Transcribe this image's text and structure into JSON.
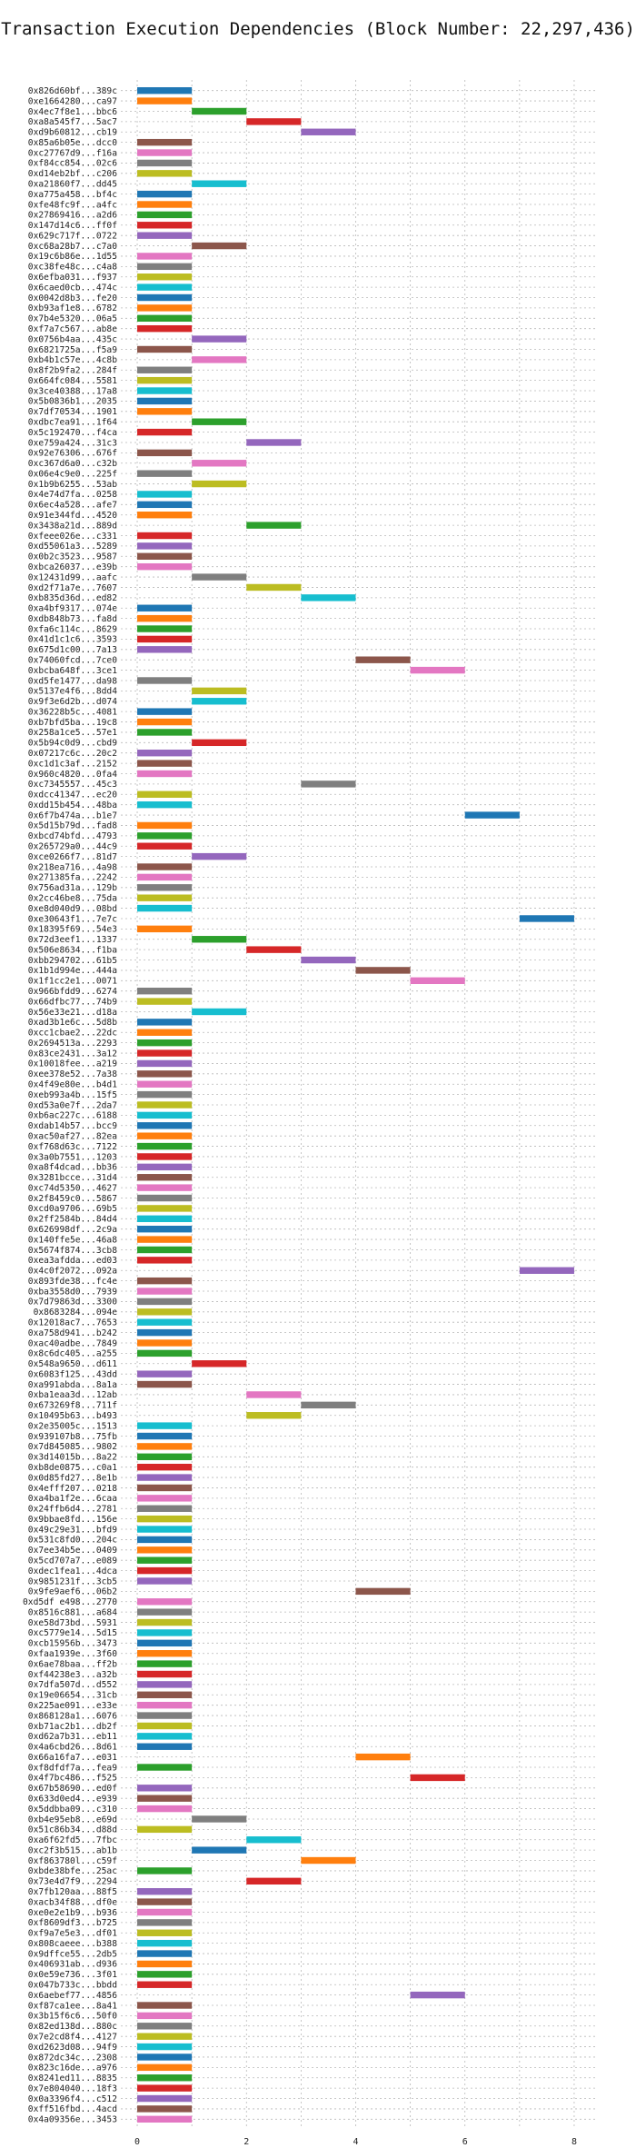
{
  "chart_data": {
    "type": "bar",
    "orientation": "horizontal",
    "style": "gantt",
    "title": "Transaction Execution Dependencies (Block Number: 22,297,436)",
    "xlabel": "",
    "ylabel": "",
    "xlim": [
      -0.3,
      8.4
    ],
    "xticks": [
      0,
      2,
      4,
      6,
      8
    ],
    "grid": true,
    "legend": "none",
    "palette": [
      "#1f77b4",
      "#ff7f0e",
      "#2ca02c",
      "#d62728",
      "#9467bd",
      "#8c564b",
      "#e377c2",
      "#7f7f7f",
      "#bcbd22",
      "#17becf"
    ],
    "transactions": [
      {
        "label": "0x826d60bf...389c",
        "start": 0,
        "end": 1
      },
      {
        "label": "0xe1664280...ca97",
        "start": 0,
        "end": 1
      },
      {
        "label": "0x4ec7f8e1...bbc6",
        "start": 1,
        "end": 2
      },
      {
        "label": "0xa8a545f7...5ac7",
        "start": 2,
        "end": 3
      },
      {
        "label": "0xd9b60812...cb19",
        "start": 3,
        "end": 4
      },
      {
        "label": "0x85a6b05e...dcc0",
        "start": 0,
        "end": 1
      },
      {
        "label": "0xc27767d9...f16a",
        "start": 0,
        "end": 1
      },
      {
        "label": "0xf84cc854...02c6",
        "start": 0,
        "end": 1
      },
      {
        "label": "0xd14eb2bf...c206",
        "start": 0,
        "end": 1
      },
      {
        "label": "0xa21860f7...dd45",
        "start": 1,
        "end": 2
      },
      {
        "label": "0xa775a458...bf4c",
        "start": 0,
        "end": 1
      },
      {
        "label": "0xfe48fc9f...a4fc",
        "start": 0,
        "end": 1
      },
      {
        "label": "0x27869416...a2d6",
        "start": 0,
        "end": 1
      },
      {
        "label": "0x147d14c6...ff0f",
        "start": 0,
        "end": 1
      },
      {
        "label": "0x629c717f...0722",
        "start": 0,
        "end": 1
      },
      {
        "label": "0xc68a28b7...c7a0",
        "start": 1,
        "end": 2
      },
      {
        "label": "0x19c6b86e...1d55",
        "start": 0,
        "end": 1
      },
      {
        "label": "0xc38fe48c...c4a8",
        "start": 0,
        "end": 1
      },
      {
        "label": "0x6efba031...f937",
        "start": 0,
        "end": 1
      },
      {
        "label": "0x6caed0cb...474c",
        "start": 0,
        "end": 1
      },
      {
        "label": "0x0042d8b3...fe20",
        "start": 0,
        "end": 1
      },
      {
        "label": "0xb93af1e8...6782",
        "start": 0,
        "end": 1
      },
      {
        "label": "0x7b4e5320...06a5",
        "start": 0,
        "end": 1
      },
      {
        "label": "0xf7a7c567...ab8e",
        "start": 0,
        "end": 1
      },
      {
        "label": "0x0756b4aa...435c",
        "start": 1,
        "end": 2
      },
      {
        "label": "0x6821725a...f5a9",
        "start": 0,
        "end": 1
      },
      {
        "label": "0xb4b1c57e...4c8b",
        "start": 1,
        "end": 2
      },
      {
        "label": "0x8f2b9fa2...284f",
        "start": 0,
        "end": 1
      },
      {
        "label": "0x664fc084...5581",
        "start": 0,
        "end": 1
      },
      {
        "label": "0x3ce40388...17a8",
        "start": 0,
        "end": 1
      },
      {
        "label": "0x5b0836b1...2035",
        "start": 0,
        "end": 1
      },
      {
        "label": "0x7df70534...1901",
        "start": 0,
        "end": 1
      },
      {
        "label": "0xdbc7ea91...1f64",
        "start": 1,
        "end": 2
      },
      {
        "label": "0x5c192470...f4ca",
        "start": 0,
        "end": 1
      },
      {
        "label": "0xe759a424...31c3",
        "start": 2,
        "end": 3
      },
      {
        "label": "0x92e76306...676f",
        "start": 0,
        "end": 1
      },
      {
        "label": "0xc367d6a0...c32b",
        "start": 1,
        "end": 2
      },
      {
        "label": "0x06e4c9e0...225f",
        "start": 0,
        "end": 1
      },
      {
        "label": "0x1b9b6255...53ab",
        "start": 1,
        "end": 2
      },
      {
        "label": "0x4e74d7fa...0258",
        "start": 0,
        "end": 1
      },
      {
        "label": "0x6ec4a528...afe7",
        "start": 0,
        "end": 1
      },
      {
        "label": "0x91e344fd...4520",
        "start": 0,
        "end": 1
      },
      {
        "label": "0x3438a21d...889d",
        "start": 2,
        "end": 3
      },
      {
        "label": "0xfeee026e...c331",
        "start": 0,
        "end": 1
      },
      {
        "label": "0xd55061a3...5289",
        "start": 0,
        "end": 1
      },
      {
        "label": "0x0b2c3523...9587",
        "start": 0,
        "end": 1
      },
      {
        "label": "0xbca26037...e39b",
        "start": 0,
        "end": 1
      },
      {
        "label": "0x12431d99...aafc",
        "start": 1,
        "end": 2
      },
      {
        "label": "0xd2f71a7e...7607",
        "start": 2,
        "end": 3
      },
      {
        "label": "0xb835d36d...ed82",
        "start": 3,
        "end": 4
      },
      {
        "label": "0xa4bf9317...074e",
        "start": 0,
        "end": 1
      },
      {
        "label": "0xdb848b73...fa8d",
        "start": 0,
        "end": 1
      },
      {
        "label": "0xfa6c114c...8629",
        "start": 0,
        "end": 1
      },
      {
        "label": "0x41d1c1c6...3593",
        "start": 0,
        "end": 1
      },
      {
        "label": "0x675d1c00...7a13",
        "start": 0,
        "end": 1
      },
      {
        "label": "0x74060fcd...7ce0",
        "start": 4,
        "end": 5
      },
      {
        "label": "0xbcba648f...3ce1",
        "start": 5,
        "end": 6
      },
      {
        "label": "0xd5fe1477...da98",
        "start": 0,
        "end": 1
      },
      {
        "label": "0x5137e4f6...8dd4",
        "start": 1,
        "end": 2
      },
      {
        "label": "0x9f3e6d2b...d074",
        "start": 1,
        "end": 2
      },
      {
        "label": "0x36228b5c...4081",
        "start": 0,
        "end": 1
      },
      {
        "label": "0xb7bfd5ba...19c8",
        "start": 0,
        "end": 1
      },
      {
        "label": "0x258a1ce5...57e1",
        "start": 0,
        "end": 1
      },
      {
        "label": "0x5b94c0d9...cbd9",
        "start": 1,
        "end": 2
      },
      {
        "label": "0x07217c6c...20c2",
        "start": 0,
        "end": 1
      },
      {
        "label": "0xc1d1c3af...2152",
        "start": 0,
        "end": 1
      },
      {
        "label": "0x960c4820...0fa4",
        "start": 0,
        "end": 1
      },
      {
        "label": "0xc7345557...45c3",
        "start": 3,
        "end": 4
      },
      {
        "label": "0xdcc41347...ec20",
        "start": 0,
        "end": 1
      },
      {
        "label": "0xdd15b454...48ba",
        "start": 0,
        "end": 1
      },
      {
        "label": "0x6f7b474a...b1e7",
        "start": 6,
        "end": 7
      },
      {
        "label": "0x5d15b79d...fad8",
        "start": 0,
        "end": 1
      },
      {
        "label": "0xbcd74bfd...4793",
        "start": 0,
        "end": 1
      },
      {
        "label": "0x265729a0...44c9",
        "start": 0,
        "end": 1
      },
      {
        "label": "0xce0266f7...81d7",
        "start": 1,
        "end": 2
      },
      {
        "label": "0x218ea716...4a98",
        "start": 0,
        "end": 1
      },
      {
        "label": "0x271385fa...2242",
        "start": 0,
        "end": 1
      },
      {
        "label": "0x756ad31a...129b",
        "start": 0,
        "end": 1
      },
      {
        "label": "0x2cc46be8...75da",
        "start": 0,
        "end": 1
      },
      {
        "label": "0xe8d040d9...08bd",
        "start": 0,
        "end": 1
      },
      {
        "label": "0xe30643f1...7e7c",
        "start": 7,
        "end": 8
      },
      {
        "label": "0x18395f69...54e3",
        "start": 0,
        "end": 1
      },
      {
        "label": "0x72d3eef1...1337",
        "start": 1,
        "end": 2
      },
      {
        "label": "0x506e8634...f1ba",
        "start": 2,
        "end": 3
      },
      {
        "label": "0xbb294702...61b5",
        "start": 3,
        "end": 4
      },
      {
        "label": "0x1b1d994e...444a",
        "start": 4,
        "end": 5
      },
      {
        "label": "0x1f1cc2e1...0071",
        "start": 5,
        "end": 6
      },
      {
        "label": "0x966bfdd9...6274",
        "start": 0,
        "end": 1
      },
      {
        "label": "0x66dfbc77...74b9",
        "start": 0,
        "end": 1
      },
      {
        "label": "0x56e33e21...d18a",
        "start": 1,
        "end": 2
      },
      {
        "label": "0xad3b1e6c...5d8b",
        "start": 0,
        "end": 1
      },
      {
        "label": "0xcc1cbae2...22dc",
        "start": 0,
        "end": 1
      },
      {
        "label": "0x2694513a...2293",
        "start": 0,
        "end": 1
      },
      {
        "label": "0x83ce2431...3a12",
        "start": 0,
        "end": 1
      },
      {
        "label": "0x10018fee...a219",
        "start": 0,
        "end": 1
      },
      {
        "label": "0xee378e52...7a38",
        "start": 0,
        "end": 1
      },
      {
        "label": "0x4f49e80e...b4d1",
        "start": 0,
        "end": 1
      },
      {
        "label": "0xeb993a4b...15f5",
        "start": 0,
        "end": 1
      },
      {
        "label": "0xd53a0e7f...2da7",
        "start": 0,
        "end": 1
      },
      {
        "label": "0xb6ac227c...6188",
        "start": 0,
        "end": 1
      },
      {
        "label": "0xdab14b57...bcc9",
        "start": 0,
        "end": 1
      },
      {
        "label": "0xac50af27...82ea",
        "start": 0,
        "end": 1
      },
      {
        "label": "0xf768d63c...7122",
        "start": 0,
        "end": 1
      },
      {
        "label": "0x3a0b7551...1203",
        "start": 0,
        "end": 1
      },
      {
        "label": "0xa8f4dcad...bb36",
        "start": 0,
        "end": 1
      },
      {
        "label": "0x3281bcce...31d4",
        "start": 0,
        "end": 1
      },
      {
        "label": "0xc74d5350...4627",
        "start": 0,
        "end": 1
      },
      {
        "label": "0x2f8459c0...5867",
        "start": 0,
        "end": 1
      },
      {
        "label": "0xcd0a9706...69b5",
        "start": 0,
        "end": 1
      },
      {
        "label": "0x2ff2584b...84d4",
        "start": 0,
        "end": 1
      },
      {
        "label": "0x626998df...2c9a",
        "start": 0,
        "end": 1
      },
      {
        "label": "0x140ffe5e...46a8",
        "start": 0,
        "end": 1
      },
      {
        "label": "0x5674f874...3cb8",
        "start": 0,
        "end": 1
      },
      {
        "label": "0xea3afdda...ed03",
        "start": 0,
        "end": 1
      },
      {
        "label": "0x4c0f2072...092a",
        "start": 7,
        "end": 8
      },
      {
        "label": "0x893fde38...fc4e",
        "start": 0,
        "end": 1
      },
      {
        "label": "0xba3558d0...7939",
        "start": 0,
        "end": 1
      },
      {
        "label": "0x7d79863d...3300",
        "start": 0,
        "end": 1
      },
      {
        "label": "0x8683284...094e",
        "start": 0,
        "end": 1
      },
      {
        "label": "0x12018ac7...7653",
        "start": 0,
        "end": 1
      },
      {
        "label": "0xa758d941...b242",
        "start": 0,
        "end": 1
      },
      {
        "label": "0xac40adbe...7849",
        "start": 0,
        "end": 1
      },
      {
        "label": "0x8c6dc405...a255",
        "start": 0,
        "end": 1
      },
      {
        "label": "0x548a9650...d611",
        "start": 1,
        "end": 2
      },
      {
        "label": "0x6083f125...43dd",
        "start": 0,
        "end": 1
      },
      {
        "label": "0xa991abda...8a1a",
        "start": 0,
        "end": 1
      },
      {
        "label": "0xba1eaa3d...12ab",
        "start": 2,
        "end": 3
      },
      {
        "label": "0x673269f8...711f",
        "start": 3,
        "end": 4
      },
      {
        "label": "0x10495b63...b493",
        "start": 2,
        "end": 3
      },
      {
        "label": "0x2e35005c...1513",
        "start": 0,
        "end": 1
      },
      {
        "label": "0x939107b8...75fb",
        "start": 0,
        "end": 1
      },
      {
        "label": "0x7d845085...9802",
        "start": 0,
        "end": 1
      },
      {
        "label": "0x3d14015b...8a22",
        "start": 0,
        "end": 1
      },
      {
        "label": "0xb8de0875...c0a1",
        "start": 0,
        "end": 1
      },
      {
        "label": "0x0d85fd27...8e1b",
        "start": 0,
        "end": 1
      },
      {
        "label": "0x4efff207...0218",
        "start": 0,
        "end": 1
      },
      {
        "label": "0xa4ba1f2e...6caa",
        "start": 0,
        "end": 1
      },
      {
        "label": "0x24ffb6d4...2781",
        "start": 0,
        "end": 1
      },
      {
        "label": "0x9bbae8fd...156e",
        "start": 0,
        "end": 1
      },
      {
        "label": "0x49c29e31...bfd9",
        "start": 0,
        "end": 1
      },
      {
        "label": "0x531c8fd0...204c",
        "start": 0,
        "end": 1
      },
      {
        "label": "0x7ee34b5e...0409",
        "start": 0,
        "end": 1
      },
      {
        "label": "0x5cd707a7...e089",
        "start": 0,
        "end": 1
      },
      {
        "label": "0xdec1fea1...4dca",
        "start": 0,
        "end": 1
      },
      {
        "label": "0x9851231f...3cb5",
        "start": 0,
        "end": 1
      },
      {
        "label": "0x9fe9aef6...06b2",
        "start": 4,
        "end": 5
      },
      {
        "label": "0xd5df e498...2770",
        "start": 0,
        "end": 1
      },
      {
        "label": "0x8516c881...a684",
        "start": 0,
        "end": 1
      },
      {
        "label": "0xe58d73bd...5931",
        "start": 0,
        "end": 1
      },
      {
        "label": "0xc5779e14...5d15",
        "start": 0,
        "end": 1
      },
      {
        "label": "0xcb15956b...3473",
        "start": 0,
        "end": 1
      },
      {
        "label": "0xfaa1939e...3f60",
        "start": 0,
        "end": 1
      },
      {
        "label": "0x6ae78baa...ff2b",
        "start": 0,
        "end": 1
      },
      {
        "label": "0xf44238e3...a32b",
        "start": 0,
        "end": 1
      },
      {
        "label": "0x7dfa507d...d552",
        "start": 0,
        "end": 1
      },
      {
        "label": "0x19e06654...31cb",
        "start": 0,
        "end": 1
      },
      {
        "label": "0x225ae091...e33e",
        "start": 0,
        "end": 1
      },
      {
        "label": "0x868128a1...6076",
        "start": 0,
        "end": 1
      },
      {
        "label": "0xb71ac2b1...db2f",
        "start": 0,
        "end": 1
      },
      {
        "label": "0xd62a7b31...eb11",
        "start": 0,
        "end": 1
      },
      {
        "label": "0x4a6cbd26...8d61",
        "start": 0,
        "end": 1
      },
      {
        "label": "0x66a16fa7...e031",
        "start": 4,
        "end": 5
      },
      {
        "label": "0xf8dfdf7a...fea9",
        "start": 0,
        "end": 1
      },
      {
        "label": "0x4f7bc486...f525",
        "start": 5,
        "end": 6
      },
      {
        "label": "0x67b58690...ed0f",
        "start": 0,
        "end": 1
      },
      {
        "label": "0x633d0ed4...e939",
        "start": 0,
        "end": 1
      },
      {
        "label": "0x5ddbba09...c310",
        "start": 0,
        "end": 1
      },
      {
        "label": "0xb4e95eb8...e69d",
        "start": 1,
        "end": 2
      },
      {
        "label": "0x51c86b34...d88d",
        "start": 0,
        "end": 1
      },
      {
        "label": "0xa6f62fd5...7fbc",
        "start": 2,
        "end": 3
      },
      {
        "label": "0xc2f3b515...ab1b",
        "start": 1,
        "end": 2
      },
      {
        "label": "0xf863780l...c59f",
        "start": 3,
        "end": 4
      },
      {
        "label": "0xbde38bfe...25ac",
        "start": 0,
        "end": 1
      },
      {
        "label": "0x73e4d7f9...2294",
        "start": 2,
        "end": 3
      },
      {
        "label": "0x7fb120aa...88f5",
        "start": 0,
        "end": 1
      },
      {
        "label": "0xacb34f88...df0e",
        "start": 0,
        "end": 1
      },
      {
        "label": "0xe0e2e1b9...b936",
        "start": 0,
        "end": 1
      },
      {
        "label": "0xf8609df3...b725",
        "start": 0,
        "end": 1
      },
      {
        "label": "0xf9a7e5e3...df01",
        "start": 0,
        "end": 1
      },
      {
        "label": "0x808caeee...b388",
        "start": 0,
        "end": 1
      },
      {
        "label": "0x9dffce55...2db5",
        "start": 0,
        "end": 1
      },
      {
        "label": "0x406931ab...d936",
        "start": 0,
        "end": 1
      },
      {
        "label": "0x0e59e736...3f01",
        "start": 0,
        "end": 1
      },
      {
        "label": "0x047b733c...bbdd",
        "start": 0,
        "end": 1
      },
      {
        "label": "0x6aebef77...4856",
        "start": 5,
        "end": 6
      },
      {
        "label": "0xf87ca1ee...8a41",
        "start": 0,
        "end": 1
      },
      {
        "label": "0x3b15f6c6...50f0",
        "start": 0,
        "end": 1
      },
      {
        "label": "0x82ed138d...880c",
        "start": 0,
        "end": 1
      },
      {
        "label": "0x7e2cd8f4...4127",
        "start": 0,
        "end": 1
      },
      {
        "label": "0xd2623d08...94f9",
        "start": 0,
        "end": 1
      },
      {
        "label": "0x872dc34c...2308",
        "start": 0,
        "end": 1
      },
      {
        "label": "0x823c16de...a976",
        "start": 0,
        "end": 1
      },
      {
        "label": "0x8241ed11...8835",
        "start": 0,
        "end": 1
      },
      {
        "label": "0x7e804040...18f3",
        "start": 0,
        "end": 1
      },
      {
        "label": "0x0a3396f4...c512",
        "start": 0,
        "end": 1
      },
      {
        "label": "0xff516fbd...4acd",
        "start": 0,
        "end": 1
      },
      {
        "label": "0x4a09356e...3453",
        "start": 0,
        "end": 1
      }
    ]
  }
}
